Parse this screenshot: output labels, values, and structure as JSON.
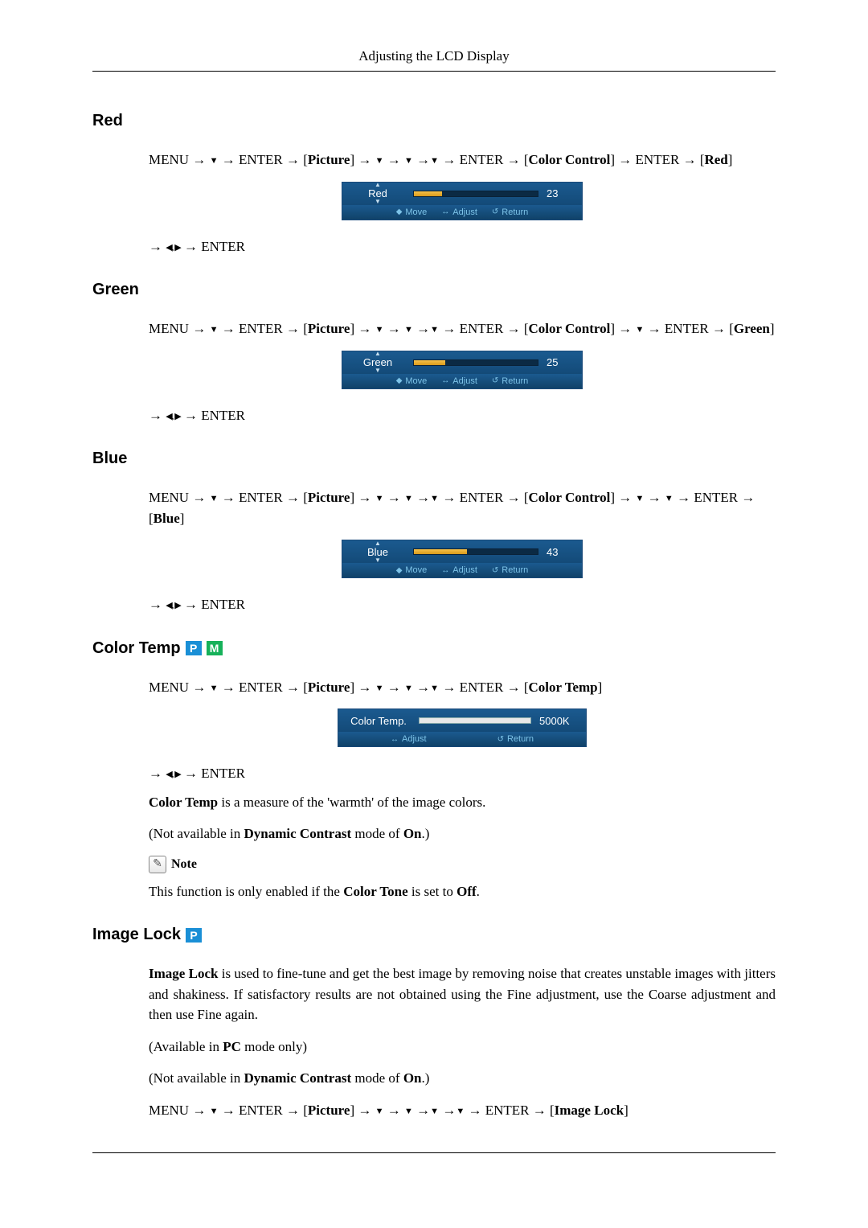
{
  "page_header": "Adjusting the LCD Display",
  "arrow": "→",
  "tri_down": "▼",
  "tri_left": "◀",
  "tri_right": "▶",
  "comma": ",",
  "menu_label": "MENU",
  "enter_label": "ENTER",
  "picture_label": "Picture",
  "color_control_label": "Color Control",
  "sections": {
    "red": {
      "heading": "Red",
      "bracket_label": "Red",
      "osd": {
        "label": "Red",
        "value": "23",
        "fill_pct": 23,
        "fill_color": "#d99a1b",
        "footer": [
          "Move",
          "Adjust",
          "Return"
        ]
      }
    },
    "green": {
      "heading": "Green",
      "bracket_label": "Green",
      "extra_down_before_enter": 1,
      "osd": {
        "label": "Green",
        "value": "25",
        "fill_pct": 25,
        "fill_color": "#d99a1b",
        "footer": [
          "Move",
          "Adjust",
          "Return"
        ]
      }
    },
    "blue": {
      "heading": "Blue",
      "bracket_label": "Blue",
      "extra_down_before_enter": 2,
      "osd": {
        "label": "Blue",
        "value": "43",
        "fill_pct": 43,
        "fill_color": "#d99a1b",
        "footer": [
          "Move",
          "Adjust",
          "Return"
        ]
      }
    },
    "colortemp": {
      "heading": "Color Temp",
      "badges": [
        "P",
        "M"
      ],
      "bracket_label": "Color Temp",
      "osd": {
        "label": "Color Temp.",
        "value": "5000K",
        "fill_pct": 0,
        "footer": [
          "Adjust",
          "Return"
        ]
      },
      "desc_prefix": "Color Temp",
      "desc_rest": " is a measure of the 'warmth' of the image colors.",
      "avail_prefix": "(Not available in ",
      "avail_bold1": "Dynamic Contrast",
      "avail_mid": " mode of ",
      "avail_bold2": "On",
      "avail_suffix": ".)",
      "note_label": "Note",
      "note_body_prefix": "This function is only enabled if the ",
      "note_body_bold": "Color Tone",
      "note_body_mid": " is set to ",
      "note_body_bold2": "Off",
      "note_body_suffix": "."
    },
    "imagelock": {
      "heading": "Image Lock",
      "badges": [
        "P"
      ],
      "body_bold": "Image Lock",
      "body_rest": " is used to fine-tune and get the best image by removing noise that creates unstable images with jitters and shakiness. If satisfactory results are not obtained using the Fine adjustment, use the Coarse adjustment and then use Fine again.",
      "avail1_prefix": "(Available in ",
      "avail1_bold": "PC",
      "avail1_suffix": " mode only)",
      "avail2_prefix": "(Not available in ",
      "avail2_bold1": "Dynamic Contrast",
      "avail2_mid": " mode of ",
      "avail2_bold2": "On",
      "avail2_suffix": ".)",
      "bracket_label": "Image Lock"
    }
  },
  "osd_footer_icons": {
    "move": "◆",
    "adjust": "↔",
    "return": "↺"
  },
  "colors": {
    "osd_bg_top": "#1b5a8f",
    "osd_bg_bottom": "#134a78",
    "osd_footer_text": "#7dc3e8",
    "badge_p": "#1a8fd6",
    "badge_m": "#16b15a"
  }
}
